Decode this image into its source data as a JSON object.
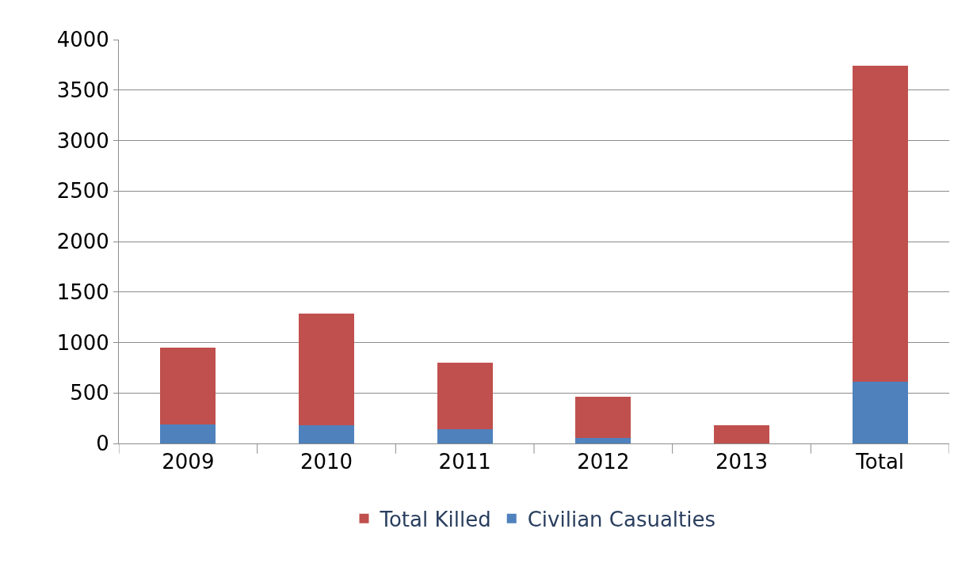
{
  "chart_data": {
    "type": "bar",
    "stacked": true,
    "categories": [
      "2009",
      "2010",
      "2011",
      "2012",
      "2013",
      "Total"
    ],
    "series": [
      {
        "name": "Civilian Casualties",
        "color": "#4f81bd",
        "values": [
          190,
          180,
          140,
          55,
          0,
          610
        ]
      },
      {
        "name": "Total Killed",
        "color": "#c0504d",
        "values": [
          760,
          1110,
          660,
          405,
          180,
          3130
        ]
      }
    ],
    "ylim": [
      0,
      4000
    ],
    "yticks": [
      0,
      500,
      1000,
      1500,
      2000,
      2500,
      3000,
      3500,
      4000
    ],
    "grid": "y",
    "legend": "bottom"
  }
}
